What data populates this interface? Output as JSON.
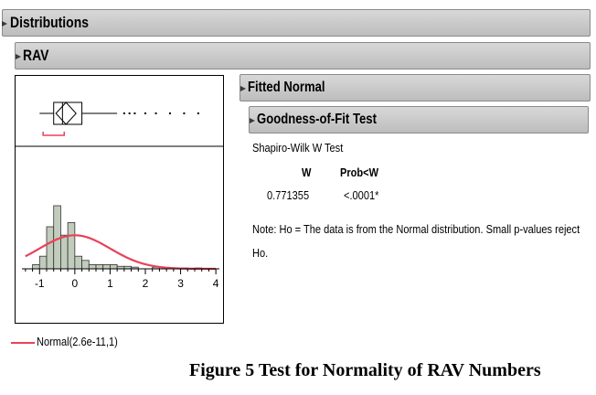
{
  "headers": {
    "distributions": "Distributions",
    "variable": "RAV",
    "fitted": "Fitted Normal",
    "gof": "Goodness-of-Fit Test"
  },
  "test": {
    "name": "Shapiro-Wilk W Test",
    "col_w": "W",
    "col_p": "Prob<W",
    "w_value": "0.771355",
    "p_value": "<.0001*"
  },
  "note": "Note: Ho = The data is from the Normal distribution. Small p-values reject Ho.",
  "legend_label": "Normal(2.6e-11,1)",
  "caption": "Figure 5 Test for Normality of RAV Numbers",
  "colors": {
    "bar_fill": "#c2ccbc",
    "curve": "#e8425a",
    "header": "#cccccc"
  },
  "chart_data": {
    "type": "bar",
    "xlim": [
      -1.5,
      4.1
    ],
    "ylim": [
      0,
      1.0
    ],
    "x_ticks": [
      "-1",
      "0",
      "1",
      "2",
      "3",
      "4"
    ],
    "histogram": {
      "bin_width": 0.2,
      "bins": [
        {
          "x0": -1.2,
          "density": 0.05
        },
        {
          "x0": -1.0,
          "density": 0.15
        },
        {
          "x0": -0.8,
          "density": 0.5
        },
        {
          "x0": -0.6,
          "density": 0.75
        },
        {
          "x0": -0.4,
          "density": 0.4
        },
        {
          "x0": -0.2,
          "density": 0.55
        },
        {
          "x0": 0.0,
          "density": 0.15
        },
        {
          "x0": 0.2,
          "density": 0.1
        },
        {
          "x0": 0.4,
          "density": 0.05
        },
        {
          "x0": 0.6,
          "density": 0.05
        },
        {
          "x0": 0.8,
          "density": 0.05
        },
        {
          "x0": 1.0,
          "density": 0.05
        },
        {
          "x0": 1.2,
          "density": 0.03
        },
        {
          "x0": 1.4,
          "density": 0.03
        },
        {
          "x0": 1.6,
          "density": 0.02
        },
        {
          "x0": 2.2,
          "density": 0.02
        },
        {
          "x0": 2.6,
          "density": 0.01
        },
        {
          "x0": 3.0,
          "density": 0.01
        },
        {
          "x0": 3.4,
          "density": 0.01
        }
      ]
    },
    "fitted_normal": {
      "mean": 0,
      "sd": 1
    },
    "box_plot": {
      "q1": -0.6,
      "median": -0.35,
      "q3": 0.2,
      "whisker_low": -1.0,
      "whisker_high": 1.2,
      "shortest_half": [
        -0.9,
        -0.3
      ],
      "outliers": [
        1.4,
        1.55,
        1.7,
        2.0,
        2.3,
        2.7,
        3.1,
        3.5
      ]
    }
  }
}
